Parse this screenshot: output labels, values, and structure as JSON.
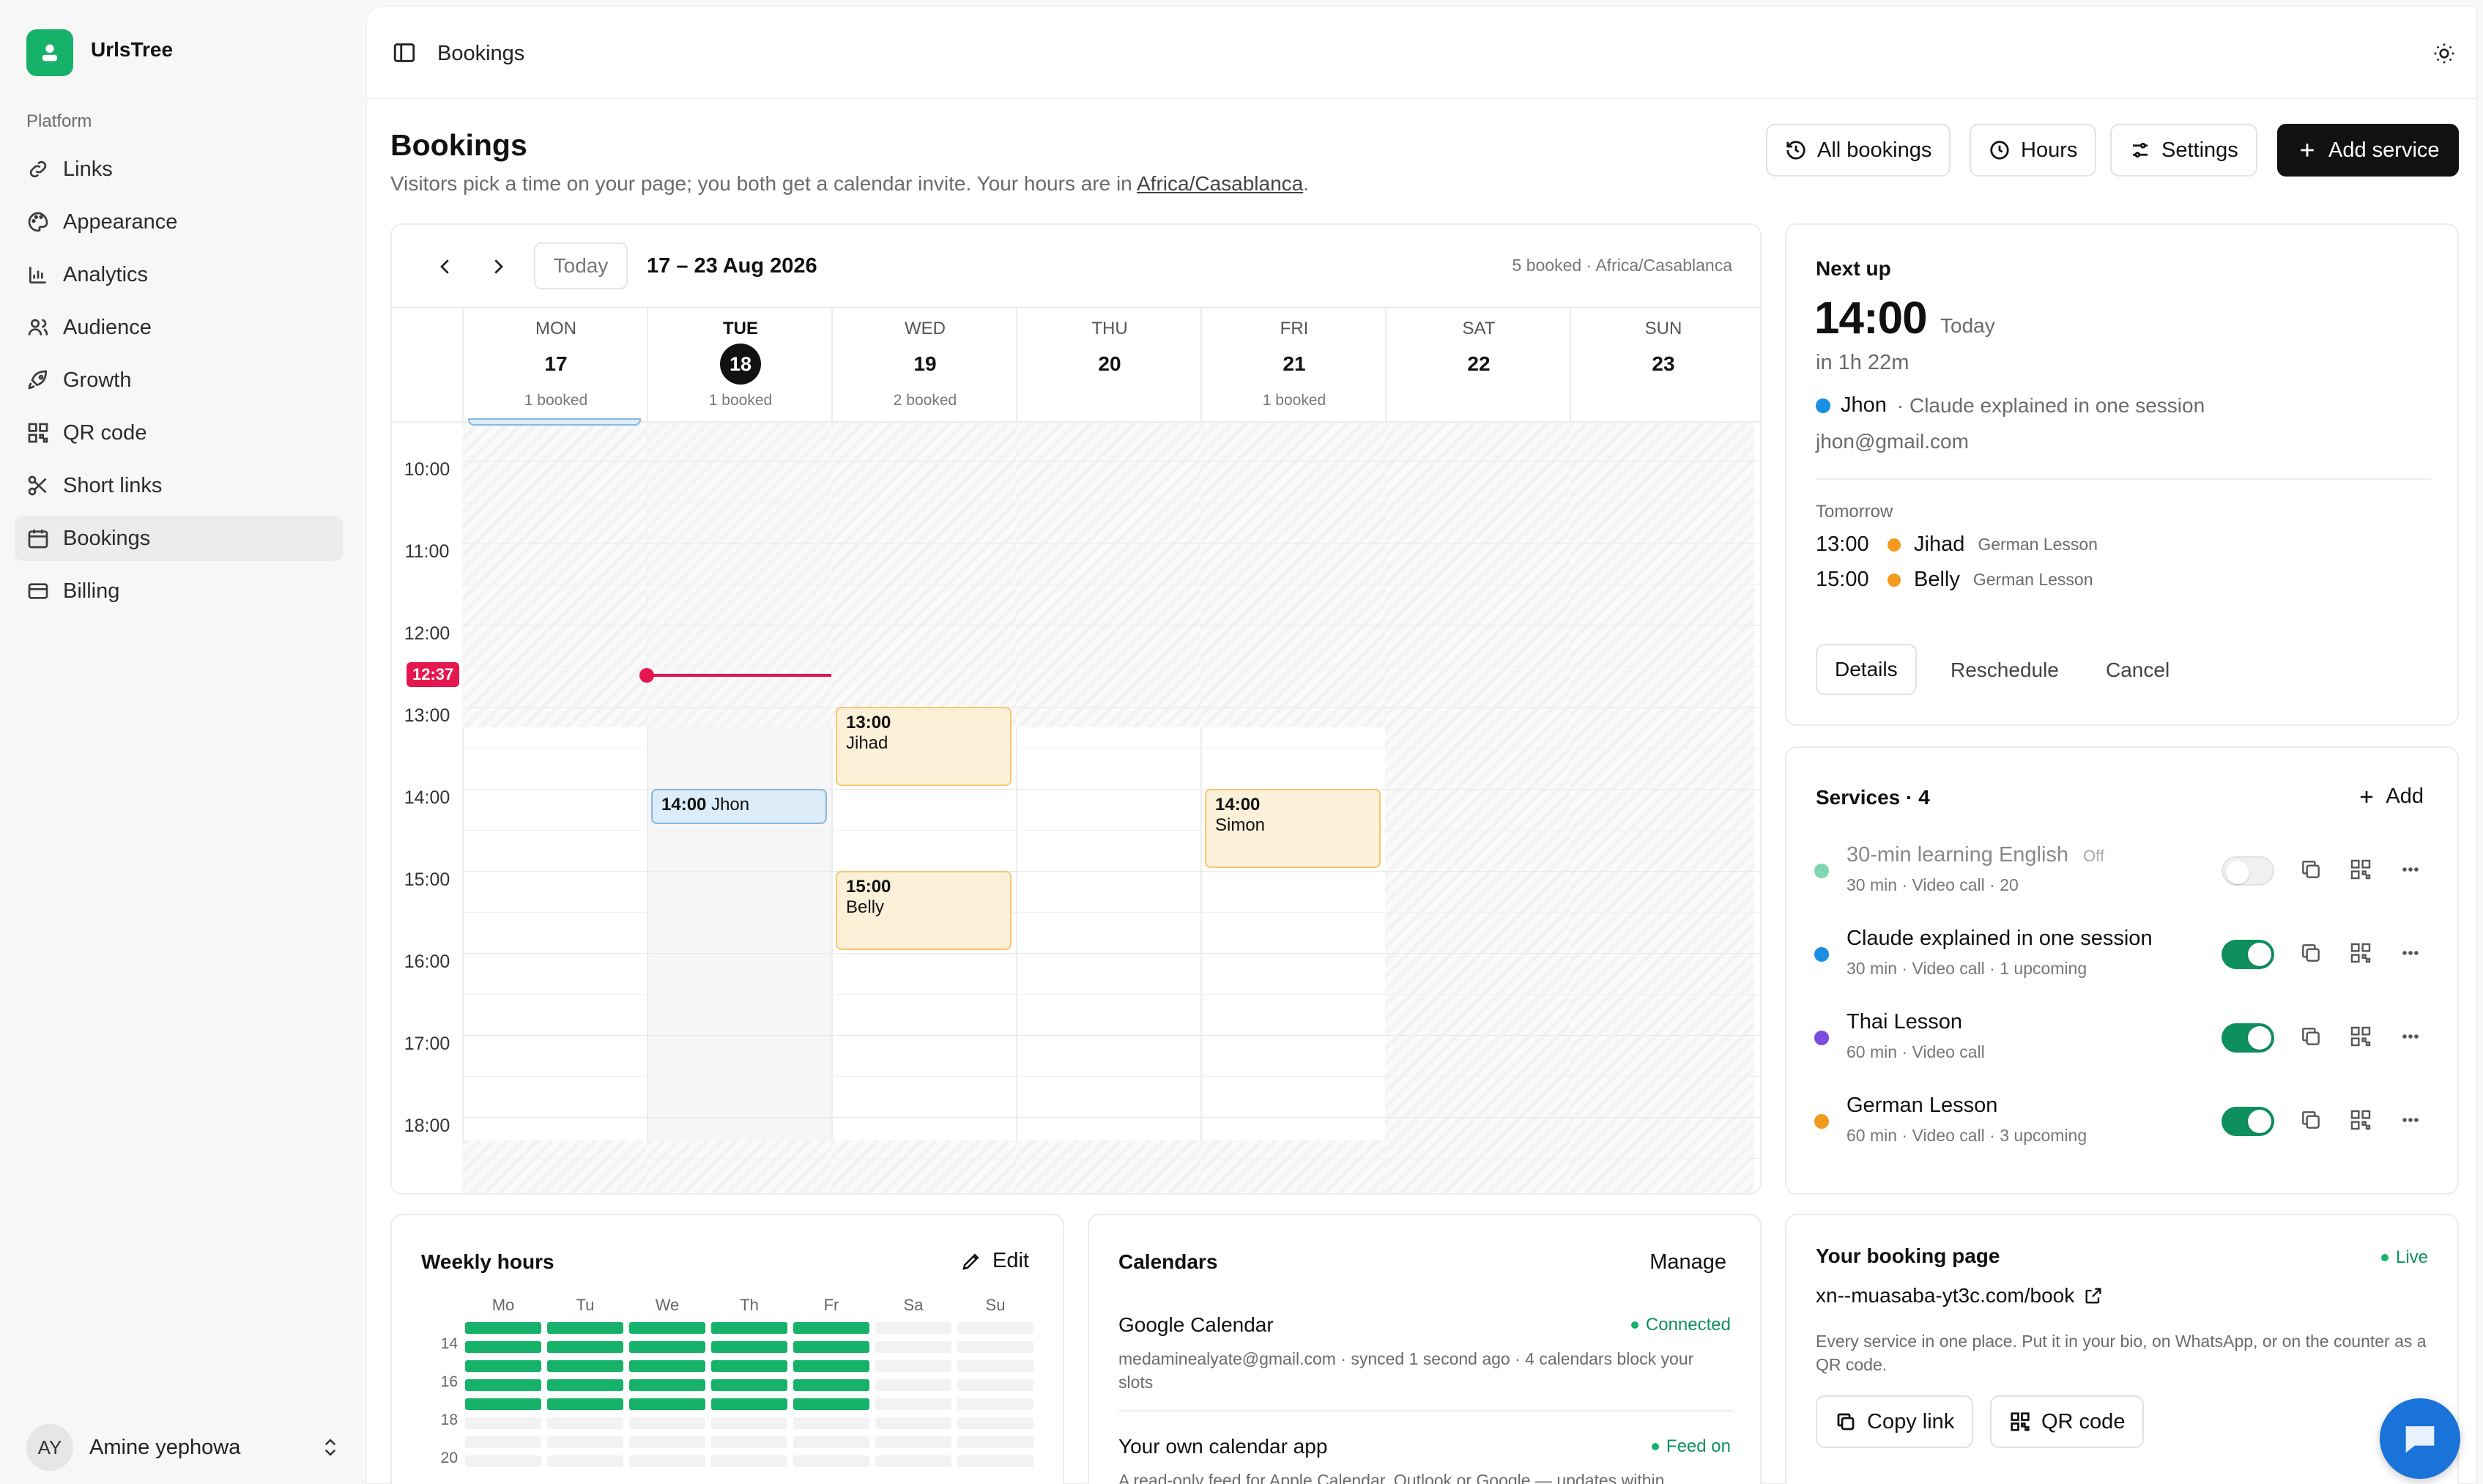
{
  "app": {
    "name": "UrlsTree"
  },
  "sidebar": {
    "section": "Platform",
    "items": [
      {
        "label": "Links",
        "icon": "link-icon"
      },
      {
        "label": "Appearance",
        "icon": "palette-icon"
      },
      {
        "label": "Analytics",
        "icon": "bar-chart-icon"
      },
      {
        "label": "Audience",
        "icon": "users-icon"
      },
      {
        "label": "Growth",
        "icon": "rocket-icon"
      },
      {
        "label": "QR code",
        "icon": "qr-code-icon"
      },
      {
        "label": "Short links",
        "icon": "scissors-icon"
      },
      {
        "label": "Bookings",
        "icon": "calendar-icon"
      },
      {
        "label": "Billing",
        "icon": "credit-card-icon"
      }
    ],
    "active": "Bookings",
    "user": {
      "initials": "AY",
      "name": "Amine yephowa"
    }
  },
  "topbar": {
    "breadcrumb": "Bookings"
  },
  "page": {
    "title": "Bookings",
    "subtitle_prefix": "Visitors pick a time on your page; you both get a calendar invite. Your hours are in ",
    "timezone_link": "Africa/Casablanca",
    "subtitle_suffix": ".",
    "buttons": {
      "all_bookings": "All bookings",
      "hours": "Hours",
      "settings": "Settings",
      "add_service": "Add service"
    }
  },
  "calendar": {
    "today_button": "Today",
    "range": "17 – 23 Aug 2026",
    "summary": "5 booked · Africa/Casablanca",
    "days": [
      {
        "dow": "MON",
        "num": "17",
        "booked": "1 booked"
      },
      {
        "dow": "TUE",
        "num": "18",
        "booked": "1 booked",
        "today": true
      },
      {
        "dow": "WED",
        "num": "19",
        "booked": "2 booked"
      },
      {
        "dow": "THU",
        "num": "20",
        "booked": ""
      },
      {
        "dow": "FRI",
        "num": "21",
        "booked": "1 booked"
      },
      {
        "dow": "SAT",
        "num": "22",
        "booked": ""
      },
      {
        "dow": "SUN",
        "num": "23",
        "booked": ""
      }
    ],
    "hours": [
      "10:00",
      "11:00",
      "12:00",
      "13:00",
      "14:00",
      "15:00",
      "16:00",
      "17:00",
      "18:00"
    ],
    "now_label": "12:37",
    "events": [
      {
        "day": 2,
        "time": "13:00",
        "name": "Jihad",
        "color": "orange"
      },
      {
        "day": 1,
        "time": "14:00",
        "name": "Jhon",
        "color": "blue"
      },
      {
        "day": 4,
        "time": "14:00",
        "name": "Simon",
        "color": "orange"
      },
      {
        "day": 2,
        "time": "15:00",
        "name": "Belly",
        "color": "orange"
      }
    ]
  },
  "next_up": {
    "heading": "Next up",
    "time": "14:00",
    "day": "Today",
    "relative": "in 1h 22m",
    "name": "Jhon",
    "service": "· Claude explained in one session",
    "email": "jhon@gmail.com",
    "tomorrow_label": "Tomorrow",
    "tomorrow": [
      {
        "time": "13:00",
        "name": "Jihad",
        "service": "German Lesson"
      },
      {
        "time": "15:00",
        "name": "Belly",
        "service": "German Lesson"
      }
    ],
    "actions": {
      "details": "Details",
      "reschedule": "Reschedule",
      "cancel": "Cancel"
    }
  },
  "services": {
    "heading": "Services · 4",
    "add_label": "Add",
    "items": [
      {
        "name": "30-min learning English",
        "badge": "Off",
        "meta": "30 min · Video call · 20",
        "color": "#7fd6b0",
        "enabled": false
      },
      {
        "name": "Claude explained in one session",
        "badge": "",
        "meta": "30 min · Video call · 1 upcoming",
        "color": "#1a8fe3",
        "enabled": true
      },
      {
        "name": "Thai Lesson",
        "badge": "",
        "meta": "60 min · Video call",
        "color": "#7c4ddc",
        "enabled": true
      },
      {
        "name": "German Lesson",
        "badge": "",
        "meta": "60 min · Video call · 3 upcoming",
        "color": "#f29a1d",
        "enabled": true
      }
    ]
  },
  "weekly_hours": {
    "heading": "Weekly hours",
    "edit_label": "Edit",
    "days": [
      "Mo",
      "Tu",
      "We",
      "Th",
      "Fr",
      "Sa",
      "Su"
    ],
    "rows": [
      "14",
      "16",
      "18",
      "20"
    ],
    "colors": {
      "on": "#17b26a",
      "off": "#f2f2f3"
    }
  },
  "calendars": {
    "heading": "Calendars",
    "manage_label": "Manage",
    "items": [
      {
        "name": "Google Calendar",
        "status": "Connected",
        "desc": "medaminealyate@gmail.com · synced 1 second ago · 4 calendars block your slots"
      },
      {
        "name": "Your own calendar app",
        "status": "Feed on",
        "desc": "A read-only feed for Apple Calendar, Outlook or Google — updates within"
      }
    ]
  },
  "booking_page": {
    "heading": "Your booking page",
    "status": "Live",
    "url": "xn--muasaba-yt3c.com/book",
    "desc": "Every service in one place. Put it in your bio, on WhatsApp, or on the counter as a QR code.",
    "copy_link": "Copy link",
    "qr_code": "QR code"
  },
  "colors": {
    "accent_green": "#17b26a",
    "now_red": "#e5174f",
    "dark": "#111111"
  }
}
